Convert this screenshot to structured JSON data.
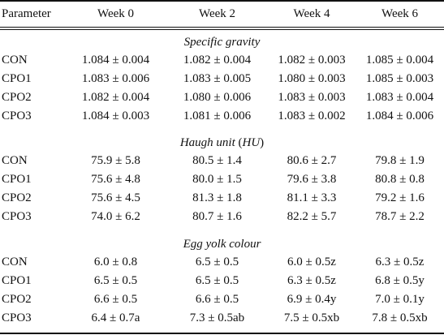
{
  "header": {
    "parameter": "Parameter",
    "weeks": [
      "Week 0",
      "Week 2",
      "Week 4",
      "Week 6"
    ]
  },
  "sections": [
    {
      "title": "Specific gravity",
      "rows": [
        {
          "label": "CON",
          "values": [
            "1.084 ± 0.004",
            "1.082 ± 0.004",
            "1.082 ± 0.003",
            "1.085 ± 0.004"
          ]
        },
        {
          "label": "CPO1",
          "values": [
            "1.083 ± 0.006",
            "1.083 ± 0.005",
            "1.080 ± 0.003",
            "1.085 ± 0.003"
          ]
        },
        {
          "label": "CPO2",
          "values": [
            "1.082 ± 0.004",
            "1.080 ± 0.006",
            "1.083 ± 0.003",
            "1.083 ± 0.004"
          ]
        },
        {
          "label": "CPO3",
          "values": [
            "1.084 ± 0.003",
            "1.081 ± 0.006",
            "1.083 ± 0.002",
            "1.084 ± 0.006"
          ]
        }
      ]
    },
    {
      "title": "Haugh unit",
      "title_paren_open": " (",
      "title_abbrev": "HU",
      "title_paren_close": ")",
      "rows": [
        {
          "label": "CON",
          "values": [
            "75.9 ± 5.8",
            "80.5 ± 1.4",
            "80.6 ± 2.7",
            "79.8 ± 1.9"
          ]
        },
        {
          "label": "CPO1",
          "values": [
            "75.6 ± 4.8",
            "80.0 ± 1.5",
            "79.6 ± 3.8",
            "80.8 ± 0.8"
          ]
        },
        {
          "label": "CPO2",
          "values": [
            "75.6 ± 4.5",
            "81.3 ± 1.8",
            "81.1 ± 3.3",
            "79.2 ± 1.6"
          ]
        },
        {
          "label": "CPO3",
          "values": [
            "74.0 ± 6.2",
            "80.7 ± 1.6",
            "82.2 ± 5.7",
            "78.7 ± 2.2"
          ]
        }
      ]
    },
    {
      "title": "Egg yolk colour",
      "rows": [
        {
          "label": "CON",
          "values": [
            "6.0 ± 0.8",
            "6.5 ± 0.5",
            "6.0 ± 0.5z",
            "6.3 ± 0.5z"
          ]
        },
        {
          "label": "CPO1",
          "values": [
            "6.5 ± 0.5",
            "6.5 ± 0.5",
            "6.3 ± 0.5z",
            "6.8 ± 0.5y"
          ]
        },
        {
          "label": "CPO2",
          "values": [
            "6.6 ± 0.5",
            "6.6 ± 0.5",
            "6.9 ± 0.4y",
            "7.0 ± 0.1y"
          ]
        },
        {
          "label": "CPO3",
          "values": [
            "6.4 ± 0.7a",
            "7.3 ± 0.5ab",
            "7.5 ± 0.5xb",
            "7.8 ± 0.5xb"
          ]
        }
      ]
    }
  ]
}
